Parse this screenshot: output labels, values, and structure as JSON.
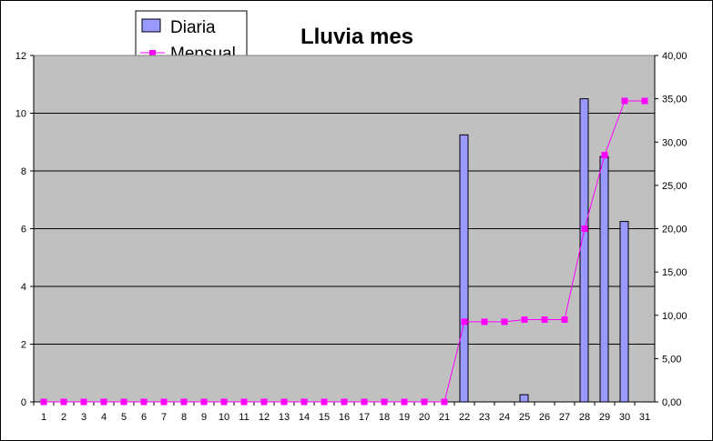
{
  "chart_data": {
    "type": "bar+line",
    "title": "Lluvia mes",
    "categories": [
      "1",
      "2",
      "3",
      "4",
      "5",
      "6",
      "7",
      "8",
      "9",
      "10",
      "11",
      "12",
      "13",
      "14",
      "15",
      "16",
      "17",
      "18",
      "19",
      "20",
      "21",
      "22",
      "23",
      "24",
      "25",
      "26",
      "27",
      "28",
      "29",
      "30",
      "31"
    ],
    "series": [
      {
        "name": "Diaria",
        "type": "bar",
        "axis": "left",
        "color": "#9999ff",
        "values": [
          0,
          0,
          0,
          0,
          0,
          0,
          0,
          0,
          0,
          0,
          0,
          0,
          0,
          0,
          0,
          0,
          0,
          0,
          0,
          0,
          0,
          9.25,
          0,
          0,
          0.25,
          0,
          0,
          10.5,
          8.5,
          6.25,
          0
        ]
      },
      {
        "name": "Mensual",
        "type": "line",
        "axis": "right",
        "color": "#ff00ff",
        "values": [
          0,
          0,
          0,
          0,
          0,
          0,
          0,
          0,
          0,
          0,
          0,
          0,
          0,
          0,
          0,
          0,
          0,
          0,
          0,
          0,
          0,
          9.25,
          9.25,
          9.25,
          9.5,
          9.5,
          9.5,
          20,
          28.5,
          34.75,
          34.75
        ]
      }
    ],
    "y_left": {
      "range": [
        0,
        12
      ],
      "ticks": [
        "0",
        "2",
        "4",
        "6",
        "8",
        "10",
        "12"
      ]
    },
    "y_right": {
      "range": [
        0,
        40
      ],
      "ticks": [
        "0,00",
        "5,00",
        "10,00",
        "15,00",
        "20,00",
        "25,00",
        "30,00",
        "35,00",
        "40,00"
      ]
    },
    "plot_background": "#c0c0c0",
    "grid": true,
    "legend": "top-left"
  }
}
